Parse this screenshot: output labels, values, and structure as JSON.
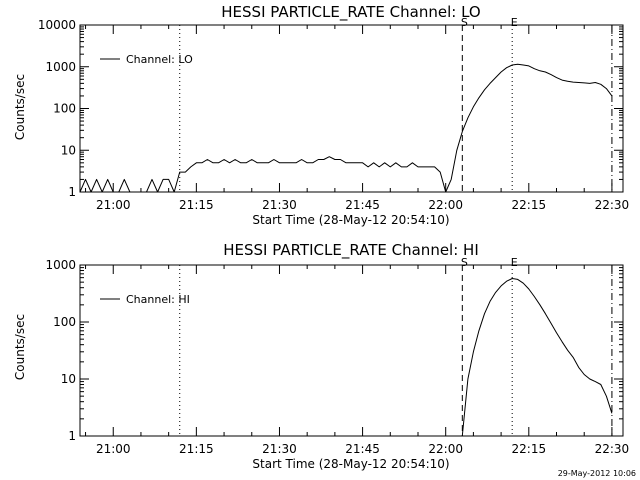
{
  "timestamp": "29-May-2012 10:06",
  "chart_data": [
    {
      "type": "line",
      "title": "HESSI PARTICLE_RATE Channel: LO",
      "xlabel": "Start Time (28-May-12 20:54:10)",
      "ylabel": "Counts/sec",
      "yscale": "log",
      "xlim": [
        "20:54",
        "22:32"
      ],
      "ylim": [
        1,
        10000
      ],
      "x_tick_labels": [
        "21:00",
        "21:15",
        "21:30",
        "21:45",
        "22:00",
        "22:15",
        "22:30"
      ],
      "y_tick_labels": [
        "1",
        "10",
        "100",
        "1000",
        "10000"
      ],
      "legend": {
        "label": "Channel: LO",
        "position": "top-left"
      },
      "vertical_markers": [
        {
          "time": "21:12",
          "style": "dotted",
          "label": ""
        },
        {
          "time": "22:03",
          "style": "dashed",
          "label": "S"
        },
        {
          "time": "22:12",
          "style": "dotted",
          "label": "E"
        },
        {
          "time": "22:30",
          "style": "dashdot",
          "label": ""
        }
      ],
      "series": [
        {
          "name": "Channel: LO",
          "x": [
            "20:54",
            "20:55",
            "20:56",
            "20:57",
            "20:58",
            "20:59",
            "21:00",
            "21:01",
            "21:02",
            "21:03",
            "21:04",
            "21:05",
            "21:06",
            "21:07",
            "21:08",
            "21:09",
            "21:10",
            "21:11",
            "21:12",
            "21:13",
            "21:14",
            "21:15",
            "21:16",
            "21:17",
            "21:18",
            "21:19",
            "21:20",
            "21:21",
            "21:22",
            "21:23",
            "21:24",
            "21:25",
            "21:26",
            "21:27",
            "21:28",
            "21:29",
            "21:30",
            "21:31",
            "21:32",
            "21:33",
            "21:34",
            "21:35",
            "21:36",
            "21:37",
            "21:38",
            "21:39",
            "21:40",
            "21:41",
            "21:42",
            "21:43",
            "21:44",
            "21:45",
            "21:46",
            "21:47",
            "21:48",
            "21:49",
            "21:50",
            "21:51",
            "21:52",
            "21:53",
            "21:54",
            "21:55",
            "21:56",
            "21:57",
            "21:58",
            "21:59",
            "22:00",
            "22:01",
            "22:02",
            "22:03",
            "22:04",
            "22:05",
            "22:06",
            "22:07",
            "22:08",
            "22:09",
            "22:10",
            "22:11",
            "22:12",
            "22:13",
            "22:14",
            "22:15",
            "22:16",
            "22:17",
            "22:18",
            "22:19",
            "22:20",
            "22:21",
            "22:22",
            "22:23",
            "22:24",
            "22:25",
            "22:26",
            "22:27",
            "22:28",
            "22:29",
            "22:30"
          ],
          "y": [
            1,
            2,
            1,
            2,
            1,
            2,
            1,
            1,
            2,
            1,
            1,
            1,
            1,
            2,
            1,
            2,
            2,
            1,
            3,
            3,
            4,
            5,
            5,
            6,
            5,
            5,
            6,
            5,
            6,
            5,
            5,
            6,
            5,
            5,
            5,
            6,
            5,
            5,
            5,
            5,
            6,
            5,
            5,
            6,
            6,
            7,
            6,
            6,
            5,
            5,
            5,
            5,
            4,
            5,
            4,
            5,
            4,
            5,
            4,
            4,
            5,
            4,
            4,
            4,
            4,
            3,
            1,
            2,
            10,
            28,
            60,
            110,
            180,
            280,
            400,
            550,
            750,
            950,
            1100,
            1150,
            1100,
            1050,
            900,
            800,
            750,
            650,
            550,
            480,
            450,
            430,
            420,
            410,
            400,
            420,
            380,
            300,
            200
          ]
        }
      ]
    },
    {
      "type": "line",
      "title": "HESSI PARTICLE_RATE Channel: HI",
      "xlabel": "Start Time (28-May-12 20:54:10)",
      "ylabel": "Counts/sec",
      "yscale": "log",
      "xlim": [
        "20:54",
        "22:32"
      ],
      "ylim": [
        1,
        1000
      ],
      "x_tick_labels": [
        "21:00",
        "21:15",
        "21:30",
        "21:45",
        "22:00",
        "22:15",
        "22:30"
      ],
      "y_tick_labels": [
        "1",
        "10",
        "100",
        "1000"
      ],
      "legend": {
        "label": "Channel: HI",
        "position": "top-left"
      },
      "vertical_markers": [
        {
          "time": "21:12",
          "style": "dotted",
          "label": ""
        },
        {
          "time": "22:03",
          "style": "dashed",
          "label": "S"
        },
        {
          "time": "22:12",
          "style": "dotted",
          "label": "E"
        },
        {
          "time": "22:30",
          "style": "dashdot",
          "label": ""
        }
      ],
      "series": [
        {
          "name": "Channel: HI",
          "x": [
            "22:03",
            "22:04",
            "22:05",
            "22:06",
            "22:07",
            "22:08",
            "22:09",
            "22:10",
            "22:11",
            "22:12",
            "22:13",
            "22:14",
            "22:15",
            "22:16",
            "22:17",
            "22:18",
            "22:19",
            "22:20",
            "22:21",
            "22:22",
            "22:23",
            "22:24",
            "22:25",
            "22:26",
            "22:27",
            "22:28",
            "22:29",
            "22:30"
          ],
          "y": [
            1,
            10,
            30,
            70,
            140,
            230,
            330,
            430,
            520,
            580,
            560,
            480,
            380,
            280,
            200,
            140,
            95,
            65,
            45,
            32,
            24,
            16,
            12,
            10,
            9,
            8,
            5,
            2.5
          ]
        }
      ]
    }
  ]
}
